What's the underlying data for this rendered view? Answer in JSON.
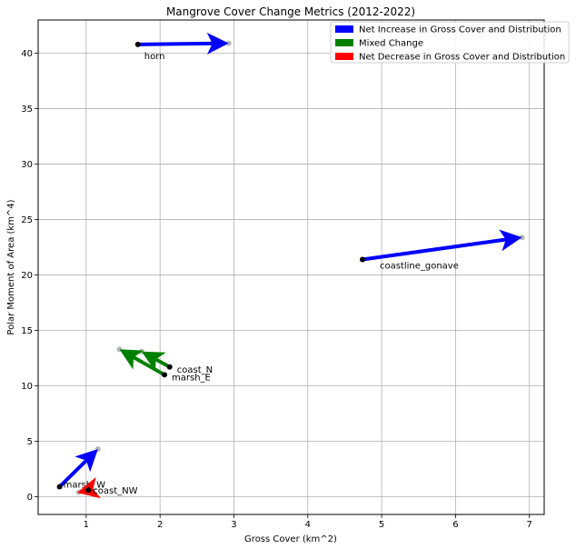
{
  "chart_data": {
    "type": "scatter",
    "title": "Mangrove Cover Change Metrics (2012-2022)",
    "xlabel": "Gross Cover (km^2)",
    "ylabel": "Polar Moment of Area (km^4)",
    "xlim": [
      0.35,
      7.2
    ],
    "ylim": [
      -1.6,
      43.0
    ],
    "x_ticks": [
      1,
      2,
      3,
      4,
      5,
      6,
      7
    ],
    "y_ticks": [
      0,
      5,
      10,
      15,
      20,
      25,
      30,
      35,
      40
    ],
    "grid": true,
    "legend_placement": "top-right",
    "legend": [
      {
        "label": "Net Increase in Gross Cover and Distribution",
        "color": "#0000ff"
      },
      {
        "label": "Mixed Change",
        "color": "#008000"
      },
      {
        "label": "Net Decrease in Gross Cover and Distribution",
        "color": "#ff0000"
      }
    ],
    "series": [
      {
        "label": "horn",
        "category": 0,
        "x0": 1.7,
        "y0": 40.8,
        "x1": 2.93,
        "y1": 40.9
      },
      {
        "label": "coastline_gonave",
        "category": 0,
        "x0": 4.74,
        "y0": 21.4,
        "x1": 6.9,
        "y1": 23.4
      },
      {
        "label": "coast_N",
        "category": 1,
        "x0": 2.13,
        "y0": 11.7,
        "x1": 1.75,
        "y1": 13.1
      },
      {
        "label": "marsh_E",
        "category": 1,
        "x0": 2.06,
        "y0": 11.0,
        "x1": 1.45,
        "y1": 13.3
      },
      {
        "label": "marsh_W",
        "category": 0,
        "x0": 0.64,
        "y0": 0.9,
        "x1": 1.16,
        "y1": 4.3
      },
      {
        "label": "coast_NW",
        "category": 2,
        "x0": 1.03,
        "y0": 0.6,
        "x1": 0.9,
        "y1": 0.4
      }
    ]
  }
}
